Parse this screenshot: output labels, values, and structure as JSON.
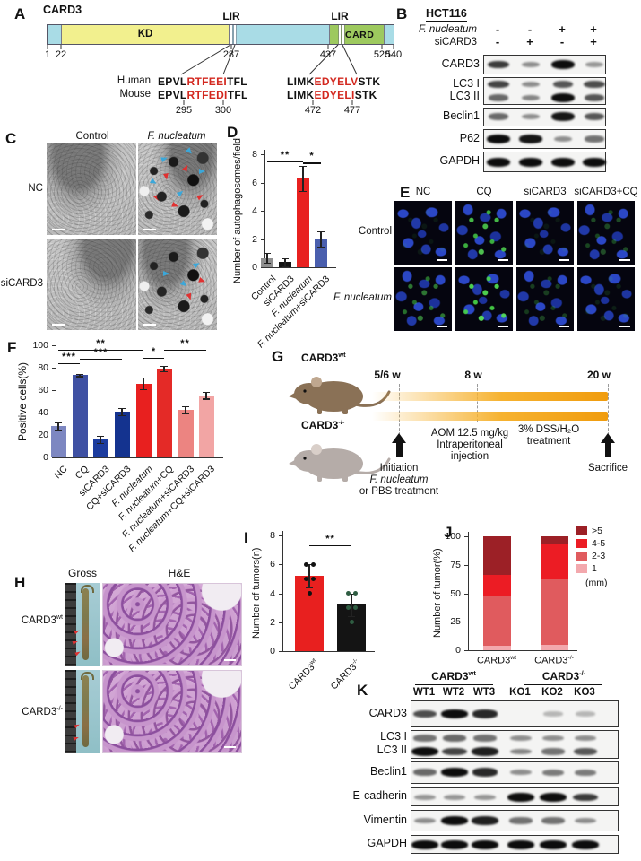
{
  "colors": {
    "accent_red": "#e8201f",
    "dark_red": "#9c2026",
    "mid_red": "#e05b5e",
    "light_red": "#f3a8ad",
    "slate_blue": "#4a5fae",
    "navy": "#14338f",
    "cyan_domain": "#a9dce6",
    "yellow_domain": "#f2f08e",
    "green_domain": "#9dc95e",
    "timeline_orange": "#f09c0e"
  },
  "panelA": {
    "label": "A",
    "title": "CARD3",
    "kd": "KD",
    "card": "CARD",
    "lir1": "LIR",
    "lir2": "LIR",
    "ticks": [
      "1",
      "22",
      "287",
      "437",
      "520",
      "540"
    ],
    "rows": [
      {
        "species": "Human",
        "m1": [
          "EPVL",
          "RTFEEI",
          "TFL"
        ],
        "m2": [
          "LIMK",
          "EDYELV",
          "STK"
        ]
      },
      {
        "species": "Mouse",
        "m1": [
          "EPVL",
          "RTFEDI",
          "TFL"
        ],
        "m2": [
          "LIMK",
          "EDYELI",
          "STK"
        ]
      }
    ],
    "positions": [
      "295",
      "300",
      "472",
      "477"
    ]
  },
  "panelB": {
    "label": "B",
    "cell_line": "HCT116",
    "conditions": [
      {
        "name": "F. nucleatum",
        "values": [
          "-",
          "-",
          "+",
          "+"
        ]
      },
      {
        "name": "siCARD3",
        "values": [
          "-",
          "+",
          "-",
          "+"
        ]
      }
    ],
    "blots": [
      {
        "labels": [
          "CARD3"
        ],
        "rows": [
          [
            0.75,
            0.3,
            1,
            0.25
          ]
        ]
      },
      {
        "labels": [
          "LC3 I",
          "LC3 II"
        ],
        "rows": [
          [
            0.7,
            0.3,
            0.6,
            0.65
          ],
          [
            0.5,
            0.35,
            1,
            0.6
          ]
        ]
      },
      {
        "labels": [
          "Beclin1"
        ],
        "rows": [
          [
            0.5,
            0.3,
            0.95,
            0.6
          ]
        ]
      },
      {
        "labels": [
          "P62"
        ],
        "rows": [
          [
            1,
            0.95,
            0.3,
            0.45
          ]
        ]
      },
      {
        "labels": [
          "GAPDH"
        ],
        "rows": [
          [
            1,
            1,
            1,
            1
          ]
        ]
      }
    ]
  },
  "panelC": {
    "label": "C",
    "col_headers": [
      "Control",
      "F. nucleatum"
    ],
    "row_headers": [
      "NC",
      "siCARD3"
    ]
  },
  "panelD_label": "D",
  "panelE": {
    "label": "E",
    "col_headers": [
      "NC",
      "CQ",
      "siCARD3",
      "siCARD3+CQ"
    ],
    "row_headers": [
      "Control",
      "F. nucleatum"
    ]
  },
  "panelF_label": "F",
  "panelG": {
    "label": "G",
    "mice": [
      "CARD3^wt",
      "CARD3^-/-"
    ],
    "timepoints": [
      "5/6 w",
      "8 w",
      "20 w"
    ],
    "initiation": [
      "Initiation",
      "F. nucleatum",
      "or PBS treatment"
    ],
    "aom": [
      "AOM 12.5 mg/kg",
      "Intraperitoneal",
      "injection"
    ],
    "dss": [
      "3% DSS/H₂O",
      "treatment"
    ],
    "sacrifice": "Sacrifice"
  },
  "panelH": {
    "label": "H",
    "col_headers": [
      "Gross",
      "H&E"
    ],
    "row_headers": [
      "CARD3^wt",
      "CARD3^-/-"
    ]
  },
  "panelI_label": "I",
  "panelJ_label": "J",
  "panelK": {
    "label": "K",
    "groups": [
      "CARD3^wt",
      "CARD3^-/-"
    ],
    "lanes": [
      "WT1",
      "WT2",
      "WT3",
      "KO1",
      "KO2",
      "KO3"
    ],
    "blots": [
      {
        "labels": [
          "CARD3"
        ],
        "rows": [
          [
            0.65,
            1,
            0.85,
            0,
            0.08,
            0.08
          ]
        ]
      },
      {
        "labels": [
          "LC3 I",
          "LC3 II"
        ],
        "rows": [
          [
            0.45,
            0.5,
            0.45,
            0.3,
            0.3,
            0.3
          ],
          [
            1,
            0.7,
            0.9,
            0.35,
            0.45,
            0.6
          ]
        ]
      },
      {
        "labels": [
          "Beclin1"
        ],
        "rows": [
          [
            0.5,
            1,
            0.85,
            0.3,
            0.4,
            0.4
          ]
        ]
      },
      {
        "labels": [
          "E-cadherin"
        ],
        "rows": [
          [
            0.25,
            0.25,
            0.25,
            1,
            1,
            0.75
          ]
        ]
      },
      {
        "labels": [
          "Vimentin"
        ],
        "rows": [
          [
            0.3,
            1,
            0.9,
            0.45,
            0.45,
            0.3
          ]
        ]
      },
      {
        "labels": [
          "GAPDH"
        ],
        "rows": [
          [
            1,
            1,
            1,
            1,
            1,
            1
          ]
        ]
      }
    ]
  },
  "chart_data": [
    {
      "id": "D",
      "type": "bar",
      "ylabel": "Number of autophagosomes/field",
      "ylim": [
        0,
        8
      ],
      "yticks": [
        0,
        2,
        4,
        6,
        8
      ],
      "categories": [
        "Control",
        "siCARD3",
        "F. nucleatum",
        "F. nucleatum+siCARD3"
      ],
      "values": [
        0.65,
        0.35,
        6.3,
        2
      ],
      "errors": [
        0.35,
        0.3,
        0.9,
        0.55
      ],
      "bar_colors": [
        "#8f8f8f",
        "#141414",
        "#e8201f",
        "#4a5fae"
      ],
      "significance": [
        {
          "from": 0,
          "to": 2,
          "label": "**",
          "y": 7.5
        },
        {
          "from": 2,
          "to": 3,
          "label": "*",
          "y": 7.4
        }
      ]
    },
    {
      "id": "F",
      "type": "bar",
      "ylabel": "Positive cells(%)",
      "ylim": [
        0,
        100
      ],
      "yticks": [
        0,
        20,
        40,
        60,
        80,
        100
      ],
      "categories": [
        "NC",
        "CQ",
        "siCARD3",
        "CQ+siCARD3",
        "F. nucleatum",
        "F. nucleatum+CQ",
        "F. nucleatum+siCARD3",
        "F. nucleatum+CQ+siCARD3"
      ],
      "values": [
        28,
        73.5,
        16,
        41,
        66,
        79.5,
        42.5,
        55.5
      ],
      "errors": [
        3,
        1,
        3,
        3,
        5,
        2.5,
        3.5,
        3
      ],
      "bar_colors": [
        "#7d87c1",
        "#3f51a3",
        "#1c3c9e",
        "#14338f",
        "#e8201f",
        "#e42a27",
        "#ec8481",
        "#f2a5a4"
      ],
      "significance": [
        {
          "from": 0,
          "to": 1,
          "label": "***",
          "y": 84
        },
        {
          "from": 1,
          "to": 3,
          "label": "***",
          "y": 88
        },
        {
          "from": 0,
          "to": 4,
          "label": "**",
          "y": 96
        },
        {
          "from": 4,
          "to": 5,
          "label": "*",
          "y": 89
        },
        {
          "from": 5,
          "to": 7,
          "label": "**",
          "y": 96
        }
      ]
    },
    {
      "id": "I",
      "type": "bar",
      "ylabel": "Number of tumors(n)",
      "ylim": [
        0,
        8
      ],
      "yticks": [
        0,
        2,
        4,
        6,
        8
      ],
      "categories": [
        "CARD3^wt",
        "CARD3^-/-"
      ],
      "values": [
        5.2,
        3.2
      ],
      "errors": [
        0.8,
        0.8
      ],
      "bar_colors": [
        "#e8201f",
        "#141414"
      ],
      "point_colors": [
        "#111111",
        "#2f5d42"
      ],
      "points": [
        [
          6,
          6,
          5,
          5,
          4
        ],
        [
          4,
          4,
          3,
          3,
          2
        ]
      ],
      "significance": [
        {
          "from": 0,
          "to": 1,
          "label": "**",
          "y": 7.3
        }
      ]
    },
    {
      "id": "J",
      "type": "stacked-bar",
      "ylabel": "Number of tumor(%)",
      "ylim": [
        0,
        100
      ],
      "yticks": [
        0,
        25,
        50,
        75,
        100
      ],
      "categories": [
        "CARD3^wt",
        "CARD3^-/-"
      ],
      "series": [
        {
          "name": "1",
          "color": "#f3a8ad",
          "values": [
            4,
            5
          ]
        },
        {
          "name": "2-3",
          "color": "#e05b5e",
          "values": [
            43,
            57
          ]
        },
        {
          "name": "4-5",
          "color": "#ec1c24",
          "values": [
            19,
            31
          ]
        },
        {
          "name": ">5",
          "color": "#9c2026",
          "values": [
            34,
            7
          ]
        }
      ],
      "legend_order": [
        ">5",
        "4-5",
        "2-3",
        "1"
      ],
      "legend_unit": "(mm)"
    }
  ]
}
